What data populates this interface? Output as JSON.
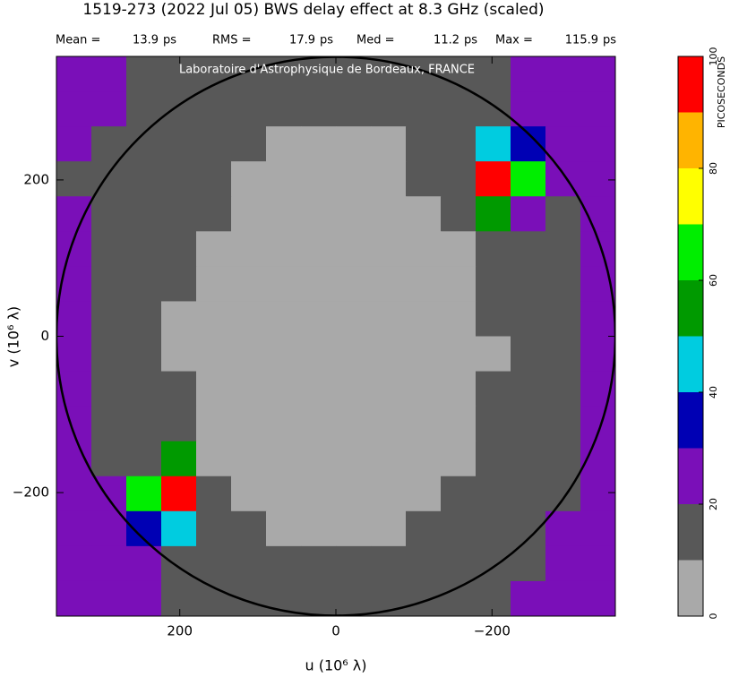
{
  "chart_data": {
    "type": "heatmap",
    "title": "1519-273  (2022 Jul 05)   BWS delay effect at  8.3 GHz (scaled)",
    "stats": [
      {
        "label": "Mean =",
        "value": 13.9,
        "unit": "ps"
      },
      {
        "label": "RMS =",
        "value": 17.9,
        "unit": "ps"
      },
      {
        "label": "Med =",
        "value": 11.2,
        "unit": "ps"
      },
      {
        "label": "Max =",
        "value": 115.9,
        "unit": "ps"
      }
    ],
    "watermark": "Laboratoire d'Astrophysique de Bordeaux, FRANCE",
    "xlabel": "u  (10⁶ λ)",
    "ylabel": "v  (10⁶ λ)",
    "xlim": [
      358,
      -358
    ],
    "ylim": [
      -358,
      358
    ],
    "xticks": [
      200,
      0,
      {
        "value": -200,
        "label": "−200"
      }
    ],
    "yticks": [
      {
        "value": -200,
        "label": "−200"
      },
      0,
      200
    ],
    "circle_radius": 358,
    "colorbar_label": "PICOSECONDS",
    "levels": [
      0,
      10,
      20,
      30,
      40,
      50,
      60,
      70,
      80,
      90,
      100
    ],
    "colors": [
      "#a9a9a9",
      "#585858",
      "#7a0fb8",
      "#0000b4",
      "#00cce0",
      "#009a00",
      "#00ee00",
      "#ffff00",
      "#ffb400",
      "#ff0000"
    ],
    "cticks": [
      0,
      20,
      40,
      60,
      80,
      100
    ],
    "z": [
      [
        24,
        22,
        18,
        16,
        15,
        14,
        13,
        12,
        12,
        13,
        14,
        16,
        18,
        22,
        26,
        24
      ],
      [
        22,
        21,
        17,
        15,
        13,
        12,
        11,
        10,
        10,
        11,
        12,
        14,
        17,
        24,
        28,
        26
      ],
      [
        20,
        18,
        16,
        14,
        12,
        10,
        9,
        8,
        8,
        9,
        11,
        13,
        45,
        30,
        26,
        22
      ],
      [
        19,
        17,
        15,
        13,
        11,
        9,
        8,
        7,
        7,
        8,
        10,
        12,
        95,
        62,
        24,
        21
      ],
      [
        22,
        16,
        14,
        12,
        10,
        8,
        6,
        5,
        5,
        6,
        8,
        11,
        55,
        20,
        19,
        20
      ],
      [
        21,
        15,
        13,
        11,
        8,
        6,
        4,
        3,
        3,
        4,
        6,
        9,
        13,
        16,
        18,
        21
      ],
      [
        20,
        15,
        13,
        10,
        7,
        4,
        2,
        1,
        1,
        2,
        4,
        8,
        12,
        15,
        18,
        23
      ],
      [
        22,
        16,
        12,
        9,
        6,
        3,
        1,
        0,
        0,
        1,
        3,
        6,
        10,
        14,
        17,
        22
      ],
      [
        22,
        17,
        12,
        9,
        6,
        3,
        1,
        0,
        0,
        1,
        3,
        6,
        9,
        12,
        16,
        21
      ],
      [
        23,
        18,
        14,
        10,
        7,
        4,
        2,
        1,
        1,
        2,
        4,
        7,
        10,
        13,
        15,
        20
      ],
      [
        21,
        18,
        14,
        11,
        8,
        6,
        4,
        3,
        3,
        4,
        6,
        8,
        11,
        14,
        16,
        21
      ],
      [
        20,
        19,
        16,
        55,
        9,
        7,
        5,
        4,
        4,
        5,
        7,
        9,
        12,
        15,
        17,
        22
      ],
      [
        24,
        20,
        62,
        95,
        11,
        9,
        7,
        6,
        6,
        7,
        9,
        11,
        13,
        16,
        19,
        23
      ],
      [
        22,
        24,
        30,
        45,
        13,
        11,
        9,
        8,
        8,
        9,
        11,
        13,
        15,
        17,
        20,
        24
      ],
      [
        25,
        27,
        22,
        17,
        14,
        13,
        11,
        10,
        10,
        11,
        12,
        14,
        16,
        19,
        23,
        26
      ],
      [
        26,
        24,
        21,
        18,
        16,
        14,
        13,
        12,
        12,
        13,
        14,
        15,
        17,
        21,
        24,
        25
      ]
    ]
  }
}
